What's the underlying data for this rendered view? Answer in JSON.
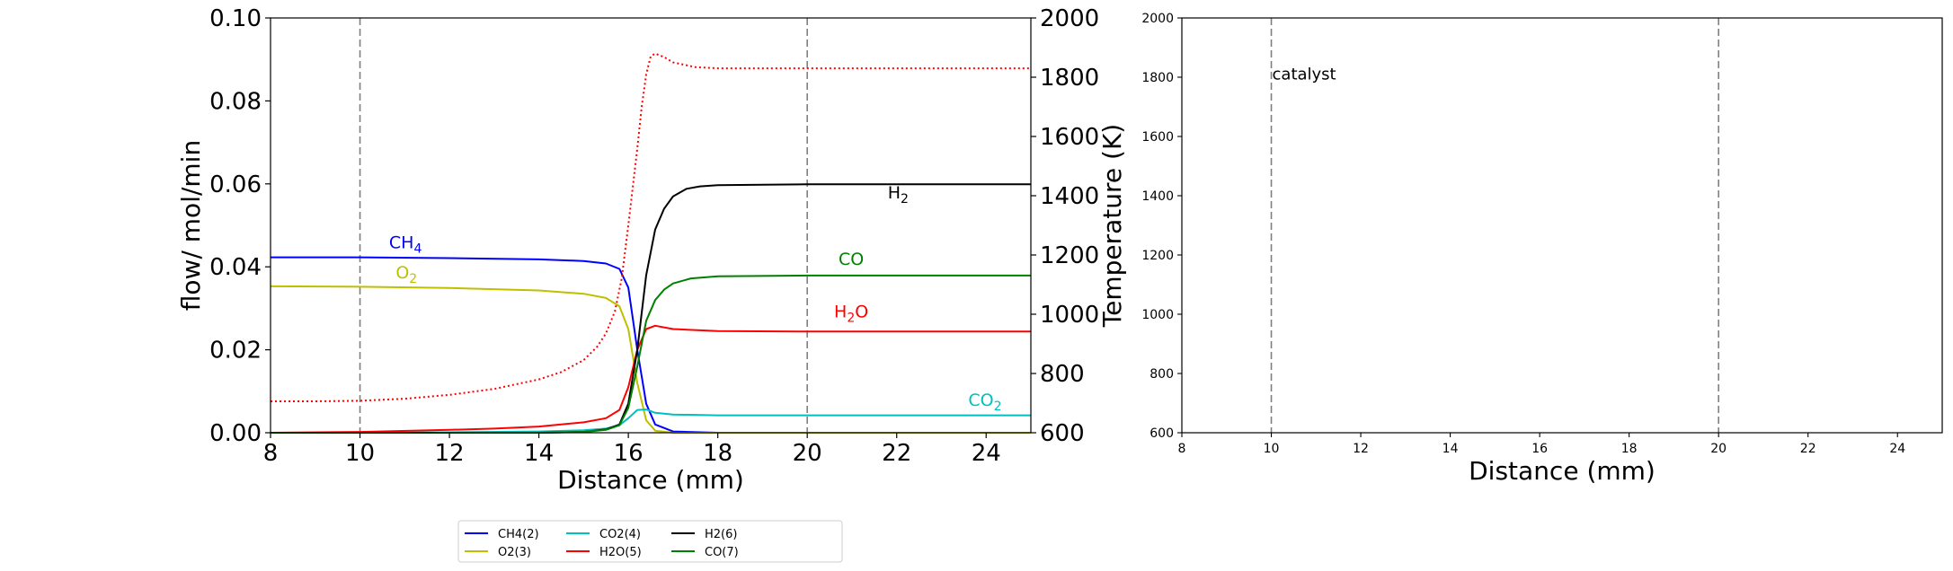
{
  "chart_data": [
    {
      "type": "line",
      "xlabel": "Distance (mm)",
      "ylabel": "flow/ mol/min",
      "y2label": "Temperature (K)",
      "xlim": [
        8,
        25
      ],
      "ylim": [
        0,
        0.1
      ],
      "y2lim": [
        600,
        2000
      ],
      "xticks": [
        "8",
        "10",
        "12",
        "14",
        "16",
        "18",
        "20",
        "22",
        "24"
      ],
      "yticks": [
        "0.00",
        "0.02",
        "0.04",
        "0.06",
        "0.08",
        "0.10"
      ],
      "y2ticks": [
        "600",
        "800",
        "1000",
        "1200",
        "1400",
        "1600",
        "1800",
        "2000"
      ],
      "vlines": [
        10,
        20
      ],
      "grid": false,
      "legend_placement": "below",
      "series": [
        {
          "name": "CH4(2)",
          "color": "#0000ff",
          "axis": "left",
          "x": [
            8,
            10,
            12,
            14,
            15,
            15.5,
            15.8,
            16.0,
            16.2,
            16.4,
            16.6,
            17,
            18,
            20,
            25
          ],
          "values": [
            0.0423,
            0.0423,
            0.0421,
            0.0418,
            0.0414,
            0.0408,
            0.0395,
            0.035,
            0.02,
            0.007,
            0.002,
            0.0003,
            0,
            0,
            0
          ]
        },
        {
          "name": "O2(3)",
          "color": "#bfbf00",
          "axis": "left",
          "x": [
            8,
            10,
            12,
            14,
            15,
            15.5,
            15.8,
            16.0,
            16.2,
            16.4,
            16.6,
            17,
            18,
            25
          ],
          "values": [
            0.0353,
            0.0352,
            0.0349,
            0.0343,
            0.0335,
            0.0325,
            0.0305,
            0.025,
            0.012,
            0.003,
            0.0005,
            0,
            0,
            0
          ]
        },
        {
          "name": "CO2(4)",
          "color": "#00bfbf",
          "axis": "left",
          "x": [
            8,
            10,
            12,
            14,
            15,
            15.5,
            15.8,
            16.0,
            16.2,
            16.4,
            16.6,
            17,
            18,
            20,
            25
          ],
          "values": [
            0,
            0,
            0.0001,
            0.0003,
            0.0006,
            0.001,
            0.0018,
            0.0035,
            0.0055,
            0.0056,
            0.0048,
            0.0044,
            0.0042,
            0.0042,
            0.0042
          ]
        },
        {
          "name": "H2O(5)",
          "color": "#ff0000",
          "axis": "left",
          "x": [
            8,
            10,
            12,
            13,
            14,
            15,
            15.5,
            15.8,
            16.0,
            16.2,
            16.4,
            16.6,
            17,
            18,
            20,
            25
          ],
          "values": [
            0,
            0.0002,
            0.0007,
            0.001,
            0.0015,
            0.0025,
            0.0035,
            0.0055,
            0.011,
            0.02,
            0.025,
            0.0258,
            0.025,
            0.0245,
            0.0244,
            0.0244
          ]
        },
        {
          "name": "H2(6)",
          "color": "#000000",
          "axis": "left",
          "x": [
            8,
            14,
            15,
            15.5,
            15.8,
            16.0,
            16.2,
            16.4,
            16.6,
            16.8,
            17.0,
            17.3,
            17.6,
            18,
            19,
            20,
            25
          ],
          "values": [
            0,
            0,
            0.0002,
            0.0008,
            0.002,
            0.007,
            0.02,
            0.038,
            0.049,
            0.054,
            0.057,
            0.0588,
            0.0594,
            0.0597,
            0.0598,
            0.0599,
            0.0599
          ]
        },
        {
          "name": "CO(7)",
          "color": "#008000",
          "axis": "left",
          "x": [
            8,
            14,
            15,
            15.5,
            15.8,
            16.0,
            16.2,
            16.4,
            16.6,
            16.8,
            17.0,
            17.4,
            18,
            20,
            25
          ],
          "values": [
            0,
            0,
            0.0002,
            0.0007,
            0.0018,
            0.006,
            0.016,
            0.027,
            0.032,
            0.0345,
            0.036,
            0.0372,
            0.0377,
            0.0379,
            0.0379
          ]
        },
        {
          "name": "",
          "color": "#ff0000",
          "axis": "right",
          "style": "dotted",
          "x": [
            8,
            9,
            10,
            11,
            12,
            13,
            14,
            14.5,
            15,
            15.3,
            15.5,
            15.7,
            15.85,
            16.0,
            16.1,
            16.2,
            16.3,
            16.4,
            16.5,
            16.6,
            16.8,
            17,
            17.5,
            18,
            20,
            22,
            25
          ],
          "values": [
            706,
            706,
            708,
            715,
            728,
            748,
            780,
            805,
            845,
            890,
            935,
            1010,
            1120,
            1300,
            1430,
            1560,
            1700,
            1810,
            1870,
            1880,
            1868,
            1850,
            1834,
            1830,
            1830,
            1830,
            1830
          ]
        }
      ],
      "annotations": [
        {
          "base": "CH",
          "sub": "4",
          "x": 10.65,
          "y": 0.0445,
          "color": "#0000ff"
        },
        {
          "base": "O",
          "sub": "2",
          "x": 10.8,
          "y": 0.0372,
          "color": "#bfbf00"
        },
        {
          "base": "H",
          "sub": "2",
          "x": 21.8,
          "y": 0.0565,
          "color": "#000000"
        },
        {
          "base": "CO",
          "sub": "",
          "x": 20.7,
          "y": 0.0405,
          "color": "#008000"
        },
        {
          "base": "H",
          "sub": "2",
          "tail": "O",
          "x": 20.6,
          "y": 0.0278,
          "color": "#ff0000"
        },
        {
          "base": "CO",
          "sub": "2",
          "x": 23.6,
          "y": 0.0065,
          "color": "#00bfbf"
        }
      ]
    },
    {
      "type": "line",
      "xlabel": "Distance (mm)",
      "ylabel": "",
      "xlim": [
        8,
        25
      ],
      "ylim": [
        600,
        2000
      ],
      "xticks": [
        "8",
        "10",
        "12",
        "14",
        "16",
        "18",
        "20",
        "22",
        "24"
      ],
      "yticks": [
        "600",
        "800",
        "1000",
        "1200",
        "1400",
        "1600",
        "1800",
        "2000"
      ],
      "vlines": [
        10,
        20
      ],
      "grid": false,
      "series": [],
      "annotations": [
        {
          "text": "catalyst",
          "x": 10.0,
          "y": 1810
        }
      ]
    }
  ]
}
